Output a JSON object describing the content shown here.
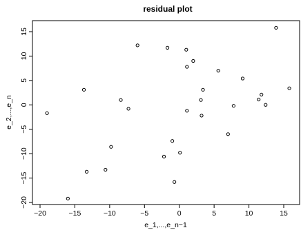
{
  "chart_data": {
    "type": "scatter",
    "title": "residual plot",
    "xlabel": "e_1,...,e_n−1",
    "ylabel": "e_2,...,e_n",
    "xlim": [
      -20,
      17
    ],
    "ylim": [
      -20,
      17
    ],
    "xticks": [
      -20,
      -15,
      -10,
      -5,
      0,
      5,
      10,
      15
    ],
    "yticks": [
      -20,
      -15,
      -10,
      -5,
      0,
      5,
      10,
      15
    ],
    "xtick_labels": [
      "−20",
      "−15",
      "−10",
      "−5",
      "0",
      "5",
      "10",
      "15"
    ],
    "ytick_labels": [
      "−20",
      "−15",
      "−10",
      "−5",
      "0",
      "5",
      "10",
      "15"
    ],
    "grid": false,
    "series": [
      {
        "marker": "open-circle",
        "color": "#000000",
        "points": [
          [
            -19.0,
            -1.7
          ],
          [
            -16.0,
            -19.2
          ],
          [
            -13.7,
            3.1
          ],
          [
            -13.3,
            -13.7
          ],
          [
            -10.6,
            -13.3
          ],
          [
            -9.8,
            -8.6
          ],
          [
            -8.4,
            1.0
          ],
          [
            -7.3,
            -0.8
          ],
          [
            -6.0,
            12.2
          ],
          [
            -2.2,
            -10.6
          ],
          [
            -1.7,
            11.7
          ],
          [
            -1.0,
            -7.4
          ],
          [
            -0.7,
            -15.8
          ],
          [
            0.1,
            -9.8
          ],
          [
            1.0,
            11.3
          ],
          [
            1.1,
            7.8
          ],
          [
            1.1,
            -1.2
          ],
          [
            2.0,
            9.0
          ],
          [
            3.1,
            1.0
          ],
          [
            3.2,
            -2.2
          ],
          [
            3.4,
            3.1
          ],
          [
            5.6,
            7.0
          ],
          [
            7.0,
            -6.0
          ],
          [
            7.8,
            -0.2
          ],
          [
            9.1,
            5.4
          ],
          [
            11.4,
            1.1
          ],
          [
            11.8,
            2.1
          ],
          [
            12.4,
            0.0
          ],
          [
            13.9,
            15.8
          ],
          [
            15.8,
            3.4
          ]
        ]
      }
    ]
  }
}
